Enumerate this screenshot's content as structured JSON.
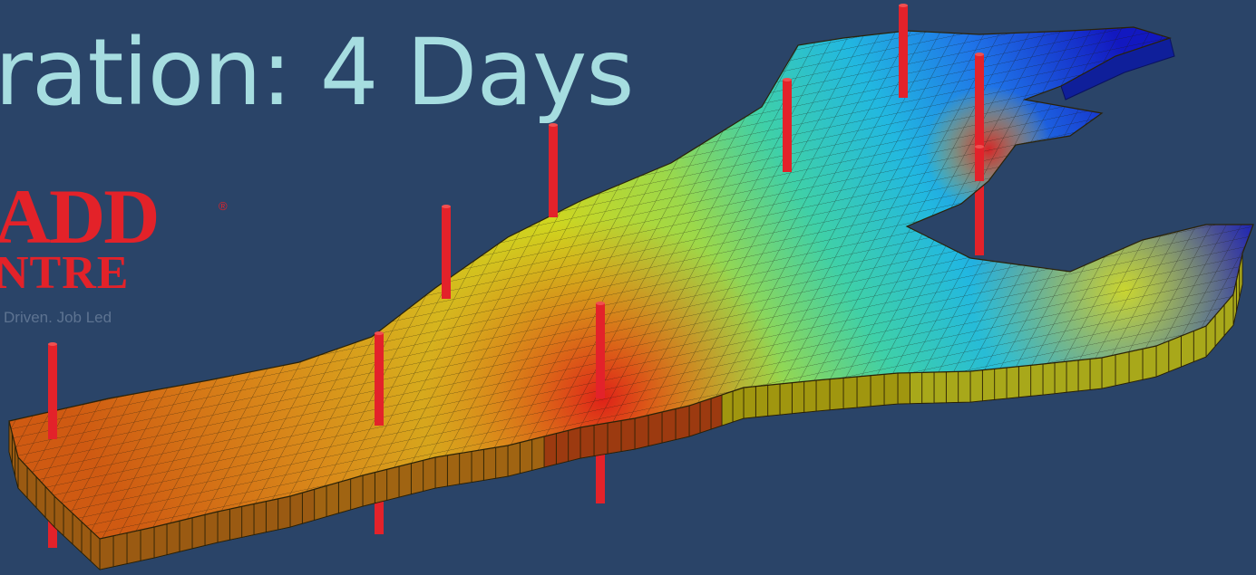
{
  "slide": {
    "headline": "ration: 4 Days",
    "logo": {
      "line1": "ADD",
      "registered_mark": "®",
      "line2": "NTRE",
      "tagline": "Driven. Job Led",
      "color": "#e32229"
    },
    "background_color": "#2a4468",
    "headline_color": "#a6dde0"
  },
  "model": {
    "kind": "3D reservoir simulation grid",
    "colormap": [
      "#1515c8",
      "#1f8df0",
      "#2fd6d6",
      "#9be060",
      "#e6e61e",
      "#e0a018",
      "#d86a14",
      "#d81e1e"
    ],
    "well_color": "#e3222a",
    "well_count": 9
  }
}
